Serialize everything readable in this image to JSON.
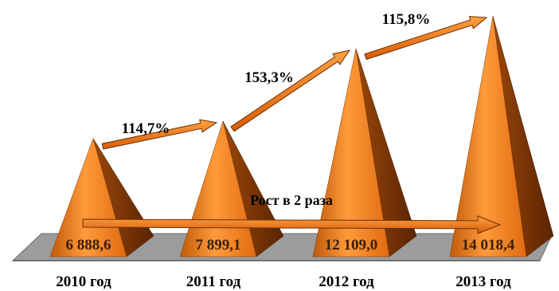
{
  "chart_data": {
    "type": "bar",
    "shape": "pyramid-3d",
    "categories": [
      "2010 год",
      "2011 год",
      "2012 год",
      "2013 год"
    ],
    "values": [
      6888.6,
      7899.1,
      12109.0,
      14018.4
    ],
    "value_labels": [
      "6 888,6",
      "7 899,1",
      "12 109,0",
      "14 018,4"
    ],
    "growth": [
      {
        "from": "2010 год",
        "to": "2011 год",
        "label": "114,7%"
      },
      {
        "from": "2011 год",
        "to": "2012 год",
        "label": "153,3%"
      },
      {
        "from": "2012 год",
        "to": "2013 год",
        "label": "115,8%"
      }
    ],
    "overall_annotation": "Рост в 2 раза",
    "ylim": [
      0,
      14018.4
    ],
    "grid": false,
    "legend": "none",
    "colors": {
      "pyramid_light": "#ffc080",
      "pyramid_mid": "#f07010",
      "pyramid_dark": "#a84a08",
      "pyramid_side": "#7a3404",
      "floor": "#9c9c9c",
      "arrow": "#f07a10"
    }
  }
}
